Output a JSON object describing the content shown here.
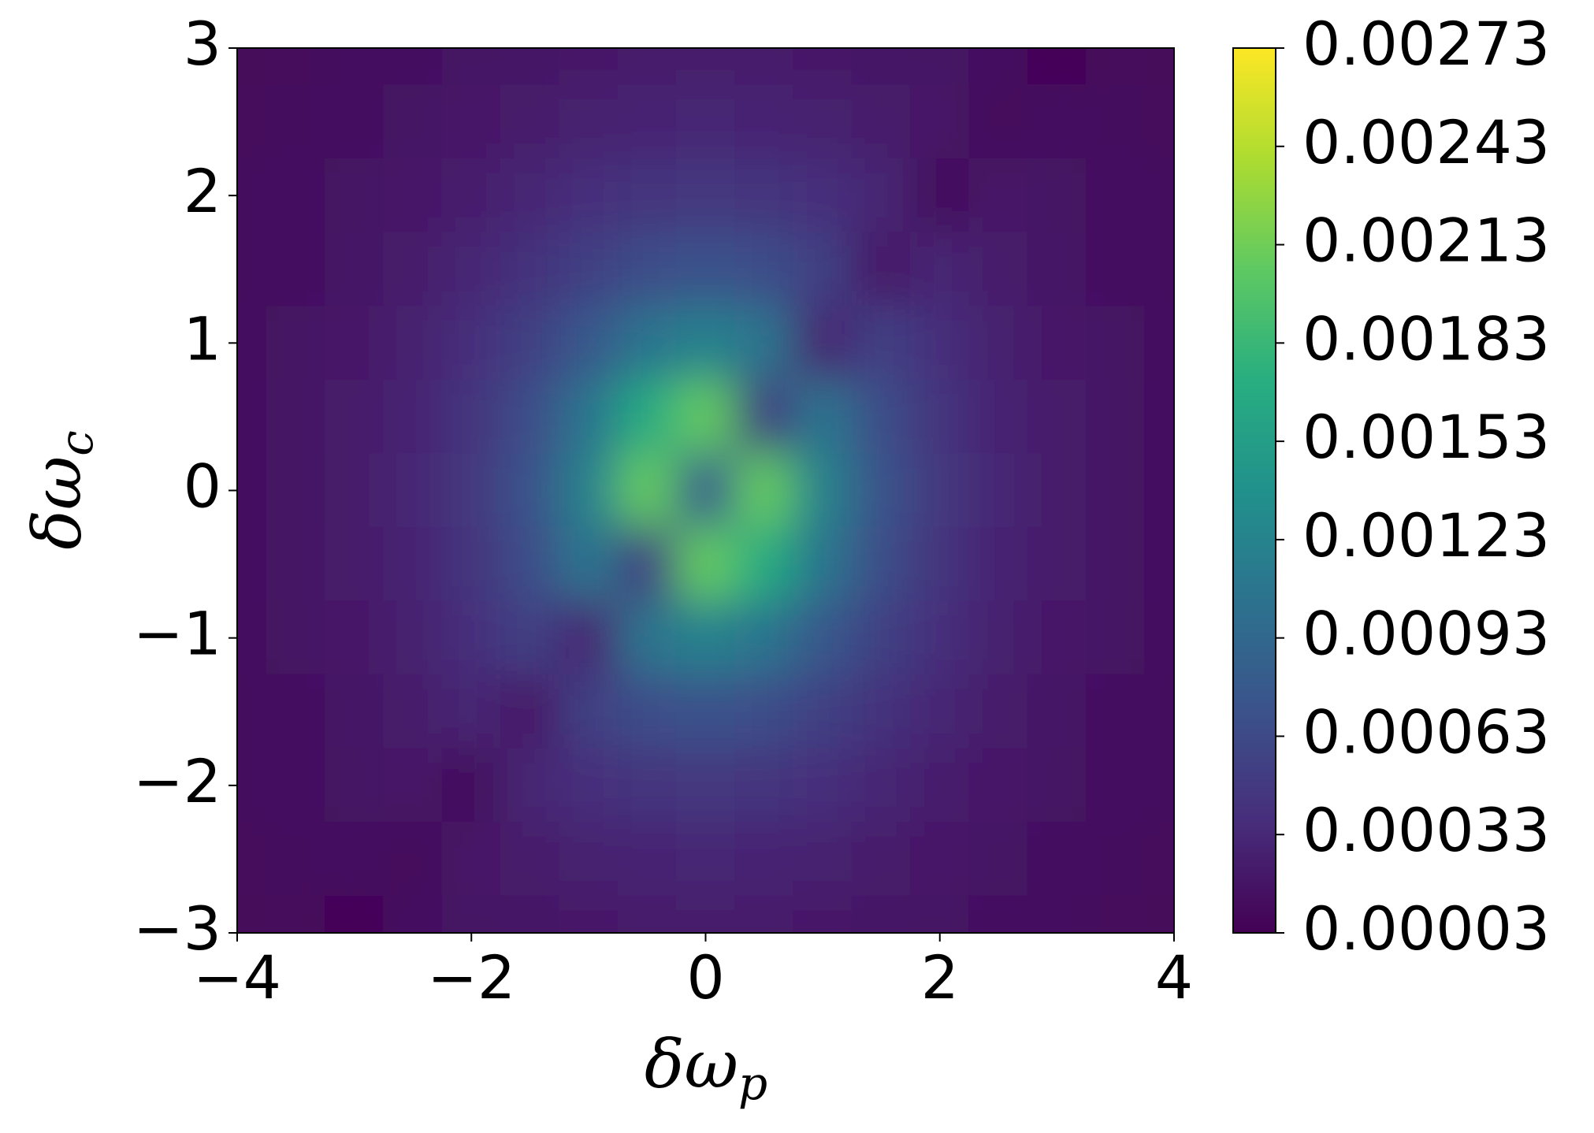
{
  "chart_data": {
    "type": "heatmap",
    "xlabel": "δω",
    "xlabel_subscript": "p",
    "ylabel": "δω",
    "ylabel_subscript": "c",
    "colormap": "viridis",
    "x": [
      -4,
      -3.5,
      -3,
      -2.5,
      -2,
      -1.5,
      -1,
      -0.5,
      0,
      0.5,
      1,
      1.5,
      2,
      2.5,
      3,
      3.5,
      4
    ],
    "y": [
      3,
      2.5,
      2,
      1.5,
      1,
      0.5,
      0,
      -0.5,
      -1,
      -1.5,
      -2,
      -2.5,
      -3
    ],
    "z": [
      [
        8e-05,
        0.0001,
        0.00012,
        0.00014,
        0.00016,
        0.00018,
        0.0002,
        0.00022,
        0.00022,
        0.00022,
        0.0002,
        0.00018,
        0.00016,
        0.00014,
        6e-05,
        0.0001,
        8e-05
      ],
      [
        9e-05,
        0.00011,
        0.00014,
        0.00016,
        0.0002,
        0.00023,
        0.00027,
        0.0003,
        0.00031,
        0.0003,
        0.00027,
        0.00023,
        0.0002,
        8e-05,
        0.00014,
        0.00011,
        9e-05
      ],
      [
        0.00011,
        0.00013,
        0.00016,
        0.0002,
        0.00025,
        0.00031,
        0.00038,
        0.00043,
        0.00046,
        0.00043,
        0.00038,
        0.00031,
        0.0001,
        0.0002,
        0.00016,
        0.00013,
        0.00011
      ],
      [
        0.00011,
        0.00014,
        0.00018,
        0.00023,
        0.00031,
        0.00041,
        0.00054,
        0.00066,
        0.00072,
        0.00066,
        0.00054,
        0.0002,
        0.00031,
        0.00023,
        0.00018,
        0.00014,
        0.00011
      ],
      [
        0.00012,
        0.00016,
        0.0002,
        0.00027,
        0.00038,
        0.00054,
        0.00078,
        0.00107,
        0.00121,
        0.00107,
        0.0003,
        0.00054,
        0.00038,
        0.00027,
        0.0002,
        0.00016,
        0.00012
      ],
      [
        0.00013,
        0.00016,
        0.00022,
        0.0003,
        0.00043,
        0.00066,
        0.00107,
        0.00168,
        0.00208,
        0.0005,
        0.00107,
        0.00066,
        0.00043,
        0.0003,
        0.00022,
        0.00016,
        0.00013
      ],
      [
        0.00013,
        0.00017,
        0.00022,
        0.00031,
        0.00046,
        0.00072,
        0.00121,
        0.00208,
        0.0008,
        0.00208,
        0.00121,
        0.00072,
        0.00046,
        0.00031,
        0.00022,
        0.00017,
        0.00013
      ],
      [
        0.00013,
        0.00016,
        0.00022,
        0.0003,
        0.00043,
        0.00066,
        0.00107,
        0.0005,
        0.00208,
        0.00168,
        0.00107,
        0.00066,
        0.00043,
        0.0003,
        0.00022,
        0.00016,
        0.00013
      ],
      [
        0.00012,
        0.00016,
        0.0002,
        0.00027,
        0.00038,
        0.00054,
        0.0003,
        0.00107,
        0.00121,
        0.00107,
        0.00078,
        0.00054,
        0.00038,
        0.00027,
        0.0002,
        0.00016,
        0.00012
      ],
      [
        0.00011,
        0.00014,
        0.00018,
        0.00023,
        0.00031,
        0.0002,
        0.00054,
        0.00066,
        0.00072,
        0.00066,
        0.00054,
        0.00041,
        0.00031,
        0.00023,
        0.00018,
        0.00014,
        0.00011
      ],
      [
        0.00011,
        0.00013,
        0.00016,
        0.0002,
        0.0001,
        0.00031,
        0.00038,
        0.00043,
        0.00046,
        0.00043,
        0.00038,
        0.00031,
        0.00025,
        0.0002,
        0.00016,
        0.00013,
        0.00011
      ],
      [
        9e-05,
        0.00011,
        0.00014,
        8e-05,
        0.0002,
        0.00023,
        0.00027,
        0.0003,
        0.00031,
        0.0003,
        0.00027,
        0.00023,
        0.0002,
        0.00016,
        0.00014,
        0.00011,
        9e-05
      ],
      [
        8e-05,
        0.0001,
        6e-05,
        0.00014,
        0.00016,
        0.00018,
        0.0002,
        0.00022,
        0.00022,
        0.00022,
        0.0002,
        0.00018,
        0.00016,
        0.00014,
        0.00012,
        0.0001,
        8e-05
      ]
    ],
    "xlim": [
      -4,
      4
    ],
    "xticks": [
      {
        "value": -4,
        "label": "−4"
      },
      {
        "value": -2,
        "label": "−2"
      },
      0,
      2,
      4
    ],
    "ylim": [
      -3,
      3
    ],
    "yticks": [
      {
        "value": -3,
        "label": "−3"
      },
      {
        "value": -2,
        "label": "−2"
      },
      {
        "value": -1,
        "label": "−1"
      },
      0,
      1,
      2,
      3
    ],
    "clim": [
      3e-05,
      0.00273
    ],
    "cticks": [
      3e-05,
      0.00033,
      0.00063,
      0.00093,
      0.00123,
      0.00153,
      0.00183,
      0.00213,
      0.00243,
      0.00273
    ]
  }
}
